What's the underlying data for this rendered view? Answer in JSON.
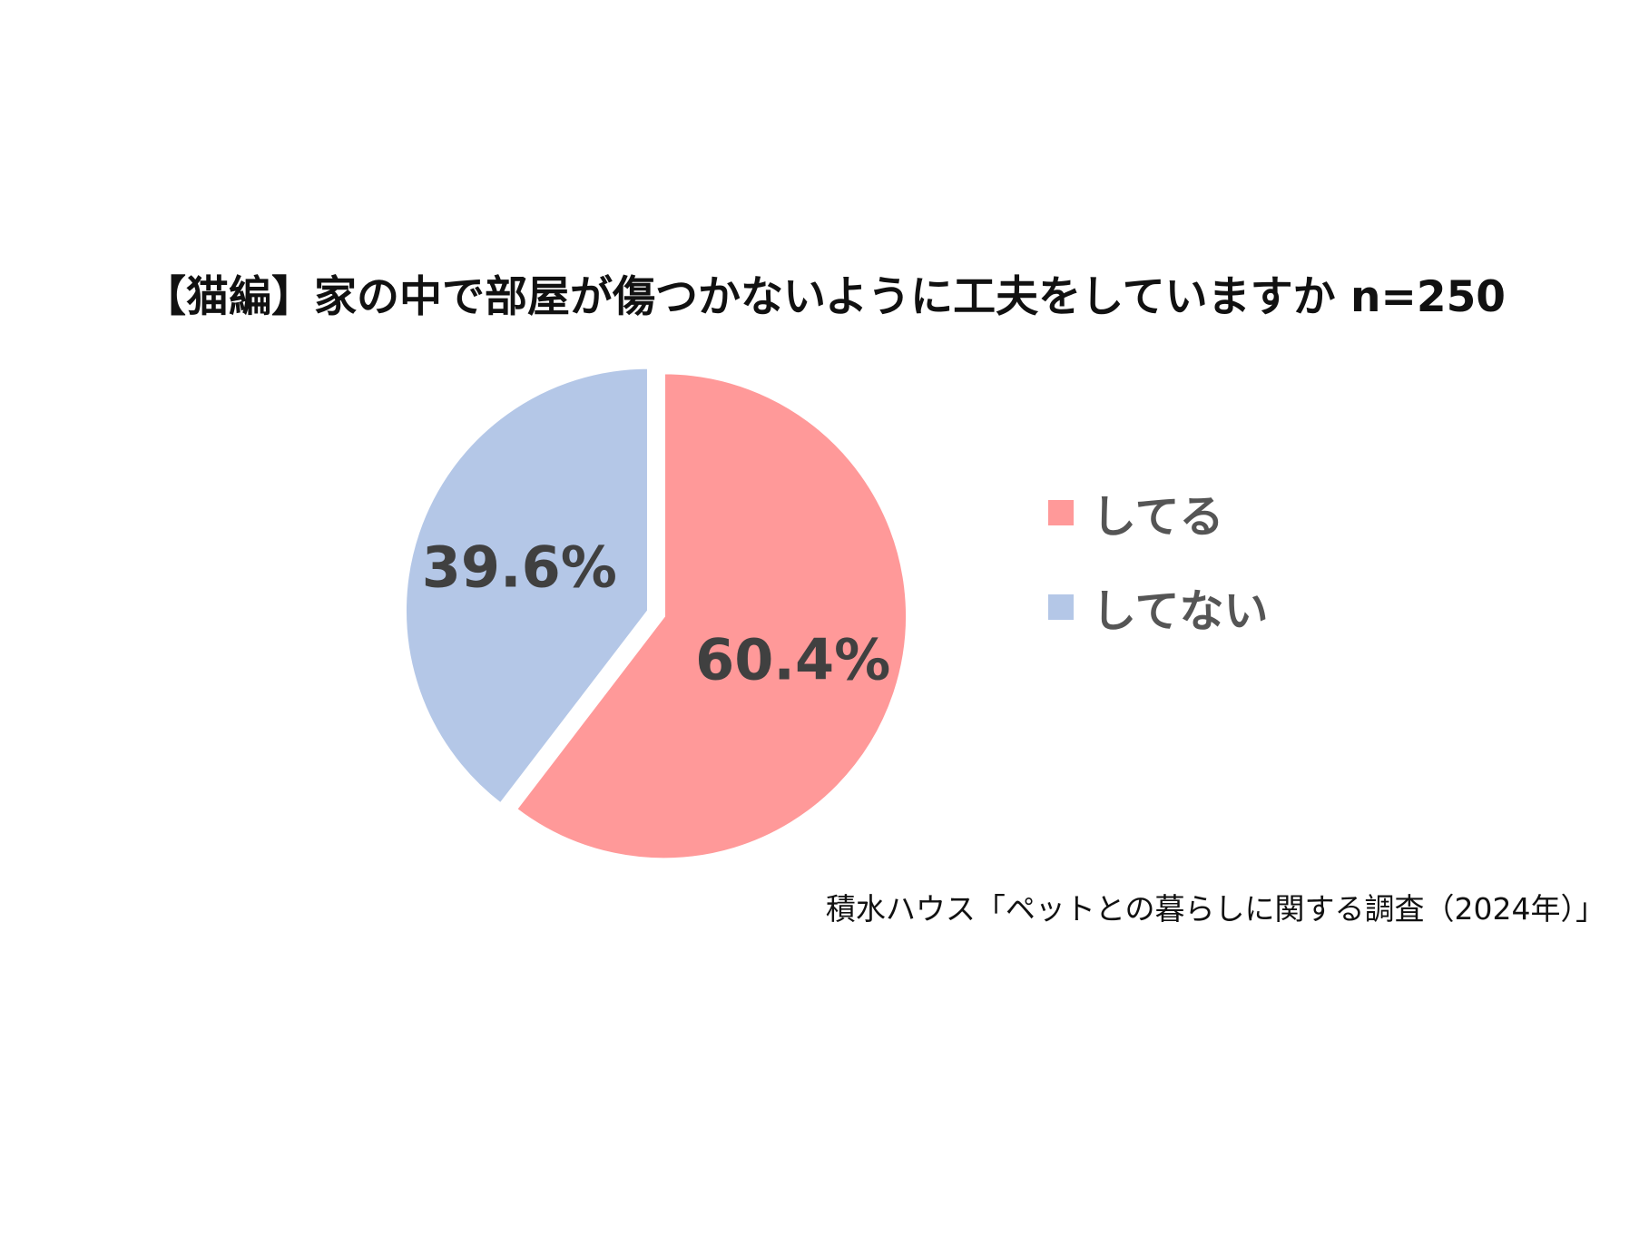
{
  "chart_data": {
    "type": "pie",
    "title": "【猫編】家の中で部屋が傷つかないように工夫をしていますか n=250",
    "slices": [
      {
        "label": "してる",
        "value": 60.4,
        "value_label": "60.4%",
        "color": "#ff9999"
      },
      {
        "label": "してない",
        "value": 39.6,
        "value_label": "39.6%",
        "color": "#b4c7e7"
      }
    ],
    "start_angle": "12 o'clock",
    "direction": "clockwise",
    "legend_position": "right",
    "data_label_color": "#404040",
    "legend_label_color": "#555555"
  },
  "source": "積水ハウス「ペットとの暮らしに関する調査（2024年）」"
}
